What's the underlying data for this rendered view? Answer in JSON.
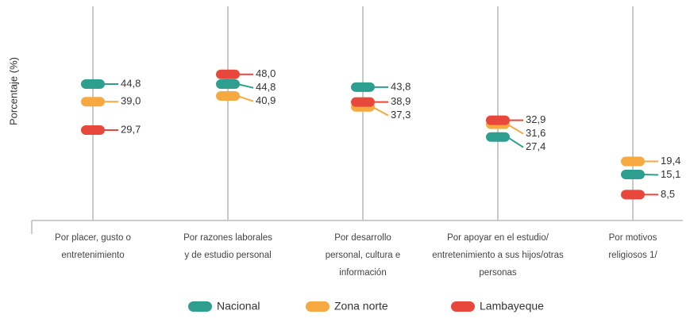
{
  "chart_data": {
    "type": "dot",
    "y_axis_label": "Porcentaje (%)",
    "categories": [
      [
        "Por placer, gusto o",
        "entretenimiento"
      ],
      [
        "Por razones laborales",
        "y de estudio personal"
      ],
      [
        "Por desarrollo",
        "personal, cultura e",
        "información"
      ],
      [
        "Por apoyar en el estudio/",
        "entretenimiento a sus hijos/otras",
        "personas"
      ],
      [
        "Por motivos",
        "religiosos 1/"
      ]
    ],
    "series": [
      {
        "name": "Nacional",
        "color": "#2e9e8e",
        "values": [
          44.8,
          44.8,
          43.8,
          27.4,
          15.1
        ],
        "value_labels": [
          "44,8",
          "44,8",
          "43,8",
          "27,4",
          "15,1"
        ]
      },
      {
        "name": "Zona norte",
        "color": "#f6a941",
        "values": [
          39.0,
          40.9,
          37.3,
          31.6,
          19.4
        ],
        "value_labels": [
          "39,0",
          "40,9",
          "37,3",
          "31,6",
          "19,4"
        ]
      },
      {
        "name": "Lambayeque",
        "color": "#e8473b",
        "values": [
          29.7,
          48.0,
          38.9,
          32.9,
          8.5
        ],
        "value_labels": [
          "29,7",
          "48,0",
          "38,9",
          "32,9",
          "8,5"
        ]
      }
    ],
    "ylim": [
      0,
      72.4
    ],
    "legend": "bottom"
  }
}
